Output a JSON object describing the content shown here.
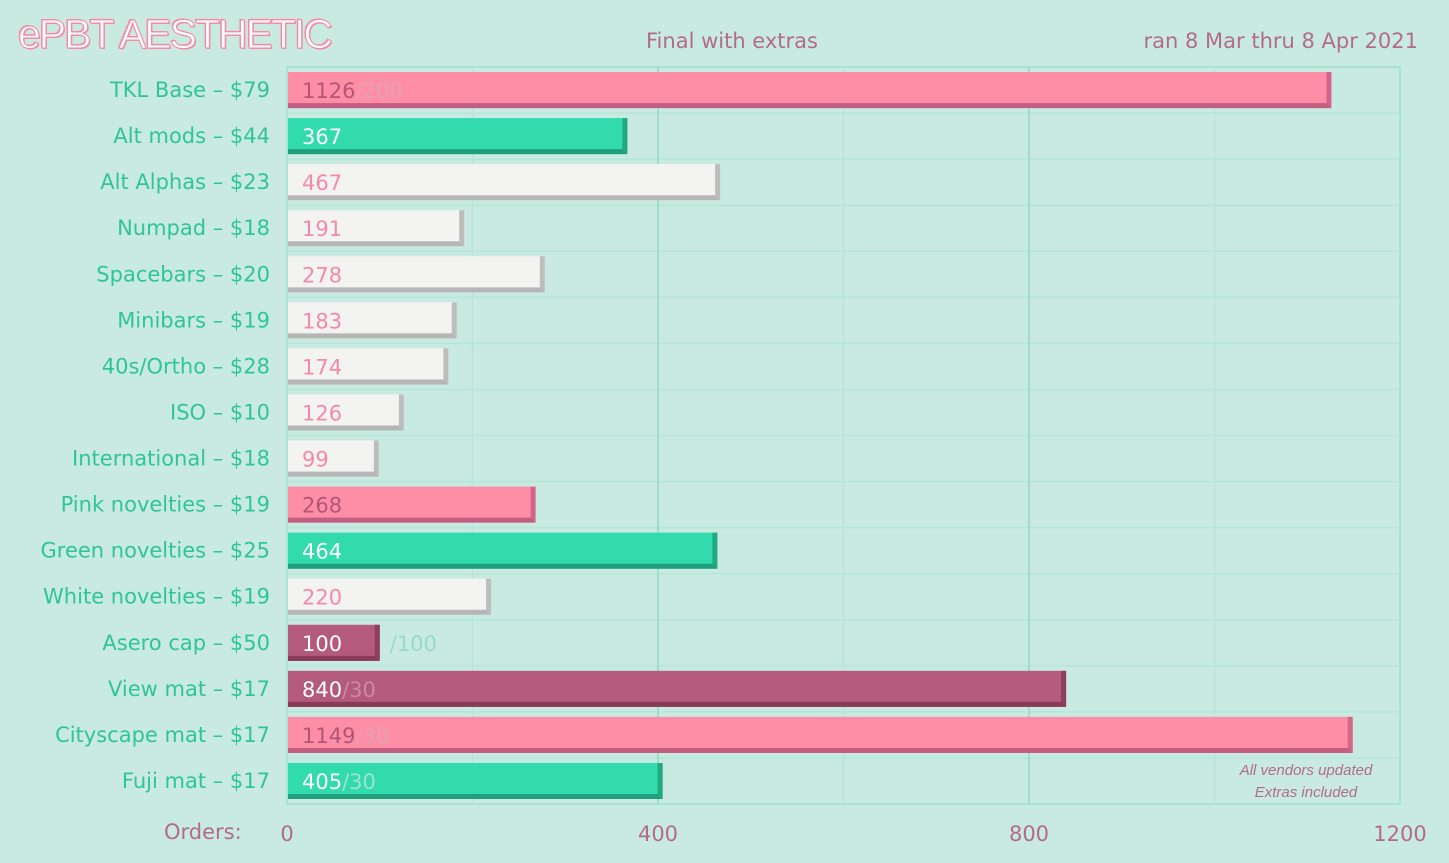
{
  "chart_data": {
    "type": "bar",
    "orientation": "horizontal",
    "title": "ePBT AESTHETIC",
    "subtitle": "Final with extras",
    "date_range": "ran 8 Mar thru 8 Apr 2021",
    "xlabel": "Orders:",
    "xlim": [
      0,
      1200
    ],
    "xticks": [
      "0",
      "400",
      "800",
      "1200"
    ],
    "grid": true,
    "notes": [
      "All vendors updated",
      "Extras included"
    ],
    "colors": {
      "pink": "#fd8ea5",
      "green": "#32dbad",
      "white": "#f3f3f1",
      "berry": "#b45a7b",
      "background": "#c9eae1",
      "label": "#2fc596",
      "muted": "#b26d84"
    },
    "items": [
      {
        "label": "TKL Base – $79",
        "value": 1126,
        "target": "/200",
        "color": "pink"
      },
      {
        "label": "Alt mods – $44",
        "value": 367,
        "target": "",
        "color": "green"
      },
      {
        "label": "Alt Alphas – $23",
        "value": 467,
        "target": "",
        "color": "white"
      },
      {
        "label": "Numpad – $18",
        "value": 191,
        "target": "",
        "color": "white"
      },
      {
        "label": "Spacebars – $20",
        "value": 278,
        "target": "",
        "color": "white"
      },
      {
        "label": "Minibars – $19",
        "value": 183,
        "target": "",
        "color": "white"
      },
      {
        "label": "40s/Ortho – $28",
        "value": 174,
        "target": "",
        "color": "white"
      },
      {
        "label": "ISO – $10",
        "value": 126,
        "target": "",
        "color": "white"
      },
      {
        "label": "International – $18",
        "value": 99,
        "target": "",
        "color": "white"
      },
      {
        "label": "Pink novelties – $19",
        "value": 268,
        "target": "",
        "color": "pink"
      },
      {
        "label": "Green novelties – $25",
        "value": 464,
        "target": "",
        "color": "green"
      },
      {
        "label": "White novelties – $19",
        "value": 220,
        "target": "",
        "color": "white"
      },
      {
        "label": "Asero cap – $50",
        "value": 100,
        "target": "/100",
        "color": "berry"
      },
      {
        "label": "View mat – $17",
        "value": 840,
        "target": "/30",
        "color": "berry"
      },
      {
        "label": "Cityscape mat – $17",
        "value": 1149,
        "target": "/30",
        "color": "pink"
      },
      {
        "label": "Fuji mat – $17",
        "value": 405,
        "target": "/30",
        "color": "green"
      }
    ]
  }
}
